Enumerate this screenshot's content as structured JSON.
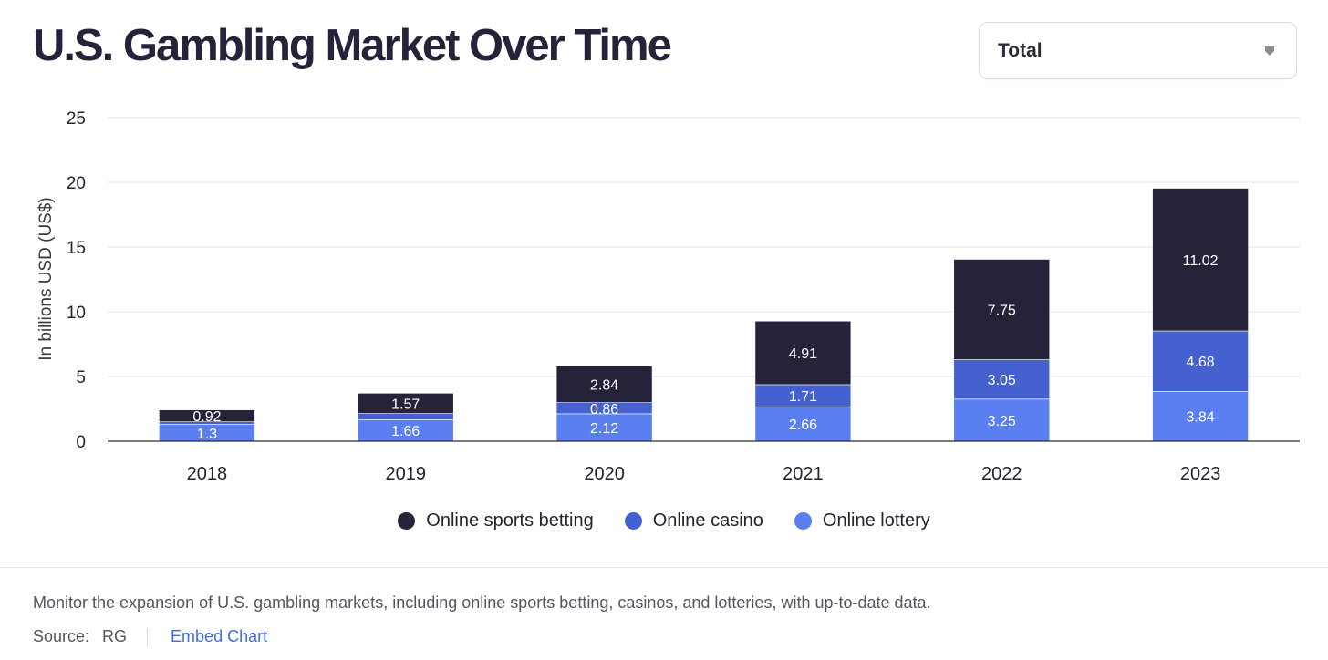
{
  "header": {
    "title": "U.S. Gambling Market Over Time",
    "dropdown_value": "Total",
    "dropdown_icon": "chevron-down-icon"
  },
  "chart_data": {
    "type": "bar",
    "stacked": true,
    "ylabel": "In billions USD (US$)",
    "ylim": [
      0,
      25
    ],
    "yticks": [
      0,
      5,
      10,
      15,
      20,
      25
    ],
    "grid": true,
    "legend_position": "bottom",
    "categories": [
      "2018",
      "2019",
      "2020",
      "2021",
      "2022",
      "2023"
    ],
    "series": [
      {
        "name": "Online lottery",
        "color": "#5a7ff0",
        "values": [
          1.3,
          1.66,
          2.12,
          2.66,
          3.25,
          3.84
        ]
      },
      {
        "name": "Online casino",
        "color": "#4461cf",
        "values": [
          0.2,
          0.48,
          0.86,
          1.71,
          3.05,
          4.68
        ]
      },
      {
        "name": "Online sports betting",
        "color": "#25233a",
        "values": [
          0.92,
          1.57,
          2.84,
          4.91,
          7.75,
          11.02
        ]
      }
    ],
    "data_labels": [
      [
        "1.3",
        "1.66",
        "2.12",
        "2.66",
        "3.25",
        "3.84"
      ],
      [
        "",
        "",
        "0.86",
        "1.71",
        "3.05",
        "4.68"
      ],
      [
        "0.92",
        "1.57",
        "2.84",
        "4.91",
        "7.75",
        "11.02"
      ]
    ],
    "legend_order": [
      "Online sports betting",
      "Online casino",
      "Online lottery"
    ]
  },
  "legend": [
    {
      "label": "Online sports betting",
      "color": "#25233a"
    },
    {
      "label": "Online casino",
      "color": "#4461cf"
    },
    {
      "label": "Online lottery",
      "color": "#5a7ff0"
    }
  ],
  "footer": {
    "description": "Monitor the expansion of U.S. gambling markets, including online sports betting, casinos, and lotteries, with up-to-date data.",
    "source_label": "Source:",
    "source_value": "RG",
    "embed_link": "Embed Chart"
  }
}
